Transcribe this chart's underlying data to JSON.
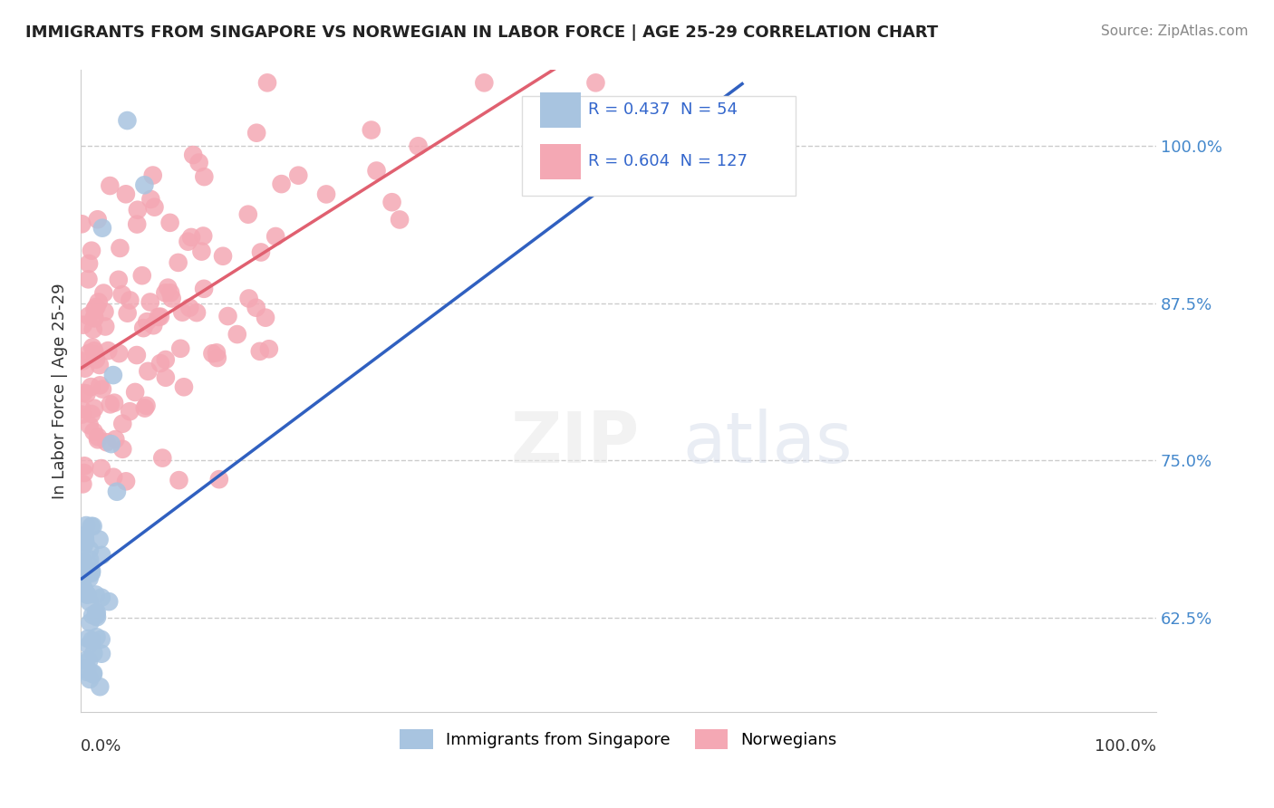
{
  "title": "IMMIGRANTS FROM SINGAPORE VS NORWEGIAN IN LABOR FORCE | AGE 25-29 CORRELATION CHART",
  "source": "Source: ZipAtlas.com",
  "ylabel": "In Labor Force | Age 25-29",
  "y_ticks": [
    0.625,
    0.75,
    0.875,
    1.0
  ],
  "y_tick_labels": [
    "62.5%",
    "75.0%",
    "87.5%",
    "100.0%"
  ],
  "xlim": [
    0.0,
    1.0
  ],
  "ylim": [
    0.55,
    1.06
  ],
  "singapore_R": 0.437,
  "singapore_N": 54,
  "norwegian_R": 0.604,
  "norwegian_N": 127,
  "singapore_color": "#a8c4e0",
  "norwegian_color": "#f4a8b4",
  "singapore_line_color": "#3060c0",
  "norwegian_line_color": "#e06070",
  "legend_singapore_label": "Immigrants from Singapore",
  "legend_norwegian_label": "Norwegians"
}
